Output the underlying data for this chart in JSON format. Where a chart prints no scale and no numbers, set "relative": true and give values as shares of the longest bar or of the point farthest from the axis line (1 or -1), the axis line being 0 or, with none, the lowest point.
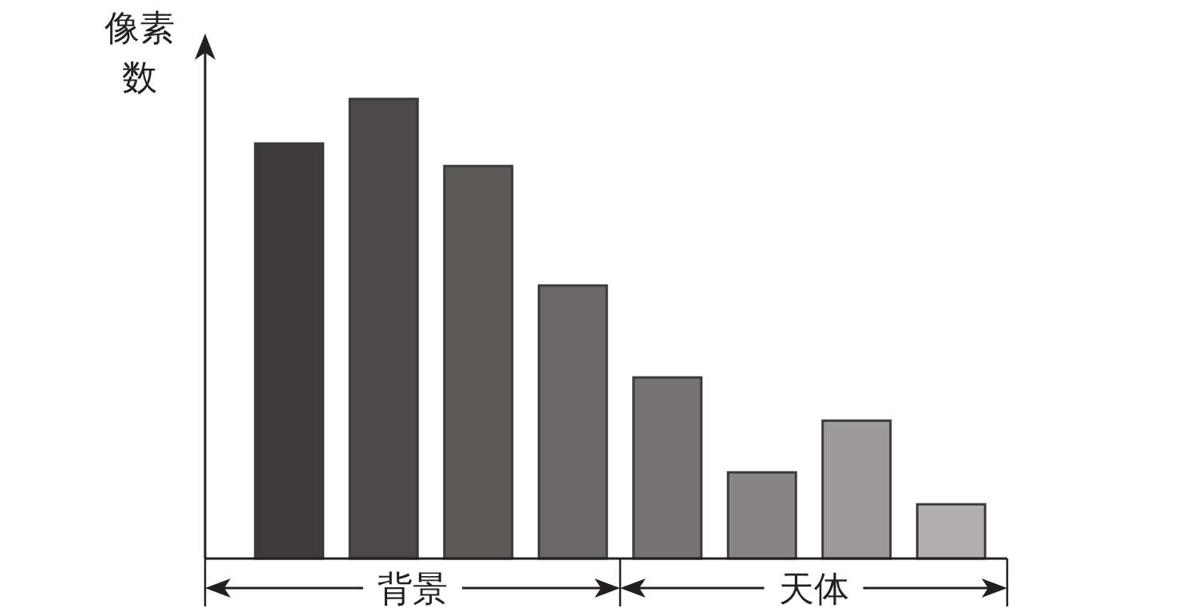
{
  "chart_data": {
    "type": "bar",
    "relative": true,
    "ylabel": "像素数",
    "categories": [
      null,
      null,
      null,
      null,
      null,
      null,
      null,
      null
    ],
    "values": [
      0.903,
      1,
      0.854,
      0.594,
      0.394,
      0.1875,
      0.3,
      0.118
    ],
    "colors": [
      "#3e3a3b",
      "#4a4849",
      "#5c5a59",
      "#686667",
      "#757273",
      "#878586",
      "#9c9a9b",
      "#b1afb0"
    ],
    "annotations": [
      "背景",
      "天体"
    ],
    "grid": false
  }
}
